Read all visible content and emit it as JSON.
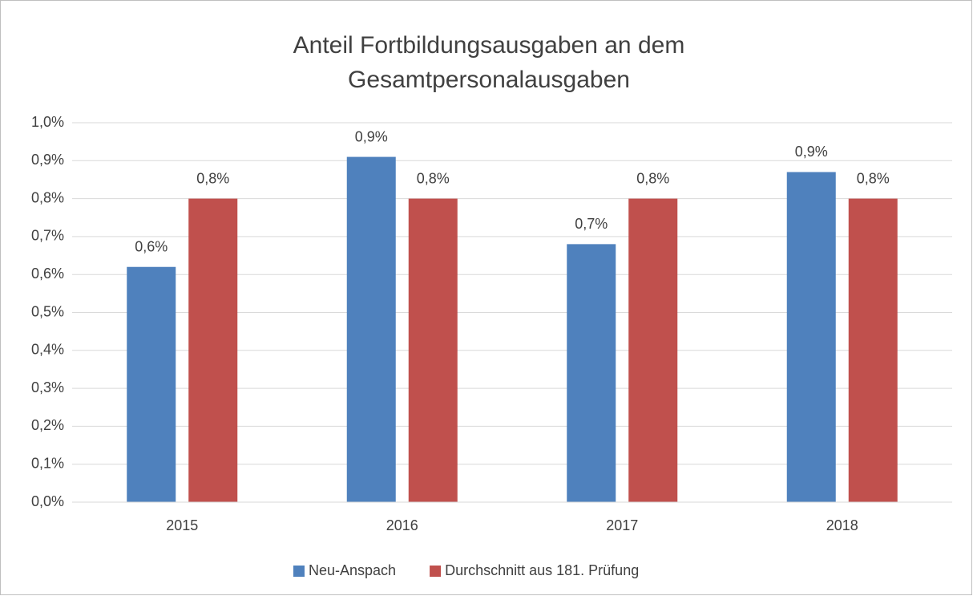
{
  "chart_data": {
    "type": "bar",
    "title": [
      "Anteil Fortbildungsausgaben an dem",
      "Gesamtpersonalausgaben"
    ],
    "categories": [
      "2015",
      "2016",
      "2017",
      "2018"
    ],
    "series": [
      {
        "name": "Neu-Anspach",
        "color": "#4f81bd",
        "values": [
          0.62,
          0.91,
          0.68,
          0.87
        ],
        "value_labels": [
          "0,6%",
          "0,9%",
          "0,7%",
          "0,9%"
        ]
      },
      {
        "name": "Durchschnitt aus 181. Prüfung",
        "color": "#c0504d",
        "values": [
          0.8,
          0.8,
          0.8,
          0.8
        ],
        "value_labels": [
          "0,8%",
          "0,8%",
          "0,8%",
          "0,8%"
        ]
      }
    ],
    "ylim": [
      0,
      1.0
    ],
    "yticks": [
      {
        "value": 0,
        "label": "0,0%"
      },
      {
        "value": 0.1,
        "label": "0,1%"
      },
      {
        "value": 0.2,
        "label": "0,2%"
      },
      {
        "value": 0.3,
        "label": "0,3%"
      },
      {
        "value": 0.4,
        "label": "0,4%"
      },
      {
        "value": 0.5,
        "label": "0,5%"
      },
      {
        "value": 0.6,
        "label": "0,6%"
      },
      {
        "value": 0.7,
        "label": "0,7%"
      },
      {
        "value": 0.8,
        "label": "0,8%"
      },
      {
        "value": 0.9,
        "label": "0,9%"
      },
      {
        "value": 1.0,
        "label": "1,0%"
      }
    ],
    "grid": true,
    "legend": "bottom"
  }
}
